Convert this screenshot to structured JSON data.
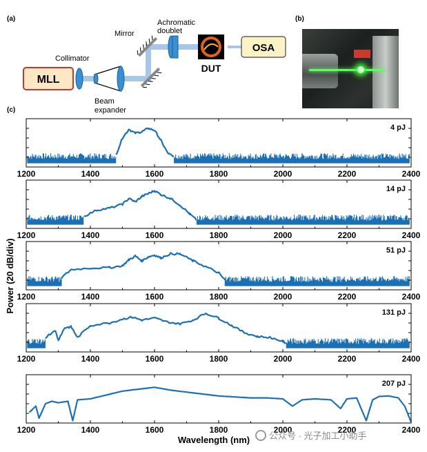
{
  "panel_labels": {
    "a": "(a)",
    "b": "(b)",
    "c": "(c)"
  },
  "schematic": {
    "mll": "MLL",
    "collimator": "Collimator",
    "beam_expander_line1": "Beam",
    "beam_expander_line2": "expander",
    "mirror": "Mirror",
    "achromatic_line1": "Achromatic",
    "achromatic_line2": "doublet",
    "dut": "DUT",
    "osa": "OSA"
  },
  "colors": {
    "trace": "#1a6fb5",
    "beam": "#a7c7e7",
    "mll_fill": "#fde7c4",
    "mll_border": "#c0392b",
    "osa_fill": "#fbf2c6",
    "lens": "#3a8fd0"
  },
  "chart_data": [
    {
      "type": "line",
      "energy_label": "4 pJ",
      "xlim": [
        1200,
        2400
      ],
      "xticks": [
        1200,
        1400,
        1600,
        1800,
        2000,
        2200,
        2400
      ],
      "noise_floor": 0.22,
      "spectrum": {
        "x": [
          1480,
          1500,
          1520,
          1540,
          1560,
          1580,
          1600,
          1620,
          1640,
          1660
        ],
        "y": [
          0.25,
          0.6,
          0.78,
          0.7,
          0.73,
          0.8,
          0.76,
          0.55,
          0.3,
          0.2
        ]
      }
    },
    {
      "type": "line",
      "energy_label": "14 pJ",
      "xlim": [
        1200,
        2400
      ],
      "xticks": [
        1200,
        1400,
        1600,
        1800,
        2000,
        2200,
        2400
      ],
      "noise_floor": 0.22,
      "spectrum": {
        "x": [
          1380,
          1420,
          1460,
          1500,
          1520,
          1540,
          1560,
          1580,
          1600,
          1620,
          1650,
          1680,
          1710,
          1730
        ],
        "y": [
          0.25,
          0.38,
          0.42,
          0.5,
          0.62,
          0.55,
          0.66,
          0.72,
          0.78,
          0.7,
          0.62,
          0.48,
          0.3,
          0.18
        ]
      }
    },
    {
      "type": "line",
      "energy_label": "51 pJ",
      "xlim": [
        1200,
        2400
      ],
      "xticks": [
        1200,
        1400,
        1600,
        1800,
        2000,
        2200,
        2400
      ],
      "noise_floor": 0.22,
      "spectrum": {
        "x": [
          1310,
          1340,
          1400,
          1460,
          1500,
          1520,
          1540,
          1560,
          1580,
          1600,
          1620,
          1650,
          1680,
          1720,
          1760,
          1800,
          1820
        ],
        "y": [
          0.25,
          0.42,
          0.45,
          0.46,
          0.5,
          0.62,
          0.7,
          0.6,
          0.68,
          0.72,
          0.66,
          0.75,
          0.74,
          0.6,
          0.48,
          0.35,
          0.2
        ]
      }
    },
    {
      "type": "line",
      "energy_label": "131 pJ",
      "xlim": [
        1200,
        2400
      ],
      "xticks": [
        1200,
        1400,
        1600,
        1800,
        2000,
        2200,
        2400
      ],
      "noise_floor": 0.22,
      "spectrum": {
        "x": [
          1260,
          1290,
          1300,
          1320,
          1340,
          1360,
          1400,
          1460,
          1500,
          1530,
          1560,
          1600,
          1640,
          1680,
          1720,
          1760,
          1800,
          1840,
          1880,
          1920,
          1960,
          2000,
          2010
        ],
        "y": [
          0.3,
          0.45,
          0.25,
          0.5,
          0.52,
          0.3,
          0.55,
          0.6,
          0.68,
          0.72,
          0.66,
          0.7,
          0.62,
          0.58,
          0.66,
          0.8,
          0.7,
          0.55,
          0.4,
          0.32,
          0.3,
          0.22,
          0.18
        ]
      }
    },
    {
      "type": "line",
      "energy_label": "207 pJ",
      "xlim": [
        1200,
        2400
      ],
      "xticks": [
        1200,
        1400,
        1600,
        1800,
        2000,
        2200,
        2400
      ],
      "spectrum": {
        "x": [
          1210,
          1230,
          1240,
          1260,
          1280,
          1300,
          1330,
          1345,
          1360,
          1400,
          1450,
          1500,
          1550,
          1600,
          1650,
          1700,
          1750,
          1800,
          1850,
          1900,
          1950,
          2000,
          2030,
          2060,
          2100,
          2150,
          2180,
          2200,
          2230,
          2260,
          2280,
          2300,
          2330,
          2360,
          2380,
          2395,
          2400
        ],
        "y": [
          0.22,
          0.35,
          0.1,
          0.4,
          0.45,
          0.42,
          0.45,
          0.05,
          0.48,
          0.5,
          0.58,
          0.66,
          0.7,
          0.74,
          0.68,
          0.64,
          0.6,
          0.56,
          0.54,
          0.52,
          0.52,
          0.5,
          0.35,
          0.48,
          0.5,
          0.48,
          0.3,
          0.5,
          0.52,
          0.05,
          0.48,
          0.55,
          0.56,
          0.52,
          0.35,
          0.1,
          0.02
        ]
      }
    }
  ],
  "axes": {
    "xlabel": "Wavelength (nm)",
    "ylabel": "Power (20 dB/div)"
  },
  "watermark": "公众号 · 光子加工小助手"
}
